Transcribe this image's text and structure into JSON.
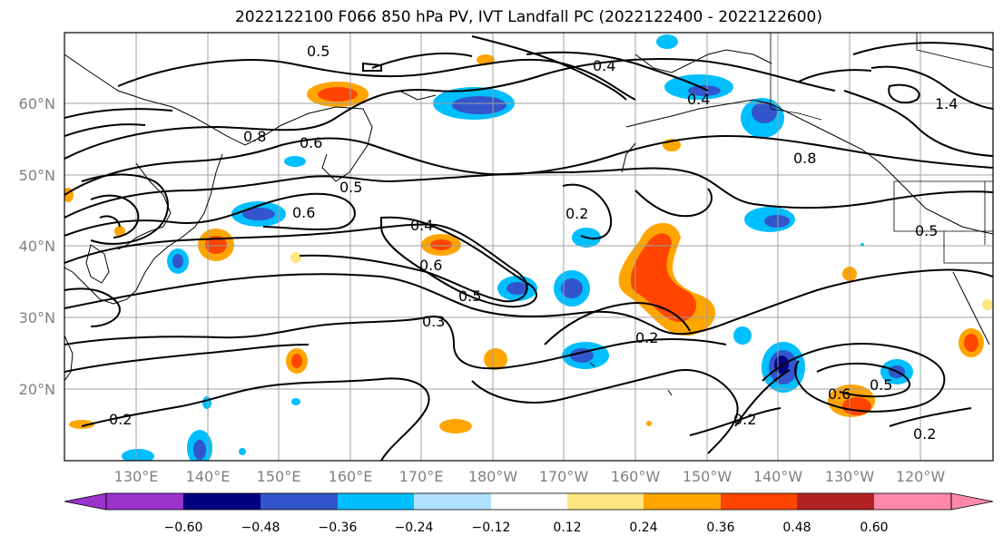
{
  "title": "2022122100 F066 850 hPa PV, IVT Landfall PC (2022122400 - 2022122600)",
  "lat_labels": [
    "60°N",
    "50°N",
    "40°N",
    "30°N",
    "20°N"
  ],
  "lon_labels": [
    "130°E",
    "140°E",
    "150°E",
    "160°E",
    "170°E",
    "180°W",
    "170°W",
    "160°W",
    "150°W",
    "140°W",
    "130°W",
    "120°W"
  ],
  "contour_labels": [
    "0.5",
    "0.4",
    "0.8",
    "0.6",
    "0.6",
    "0.5",
    "0.8",
    "0.2",
    "0.4",
    "0.5",
    "0.6",
    "0.3",
    "0.2",
    "0.2",
    "0.6",
    "0.5",
    "0.2",
    "0.2",
    "1.4",
    "0.4",
    "0.5"
  ],
  "colorbar": {
    "ticks": [
      "−0.60",
      "−0.48",
      "−0.36",
      "−0.24",
      "−0.12",
      "0.12",
      "0.24",
      "0.36",
      "0.48",
      "0.60"
    ],
    "colors": [
      "#9933cc",
      "#000080",
      "#3355cc",
      "#00bfff",
      "#b0e0ff",
      "#ffffff",
      "#ffe680",
      "#ffa500",
      "#ff4500",
      "#b22222",
      "#ff88aa"
    ]
  }
}
